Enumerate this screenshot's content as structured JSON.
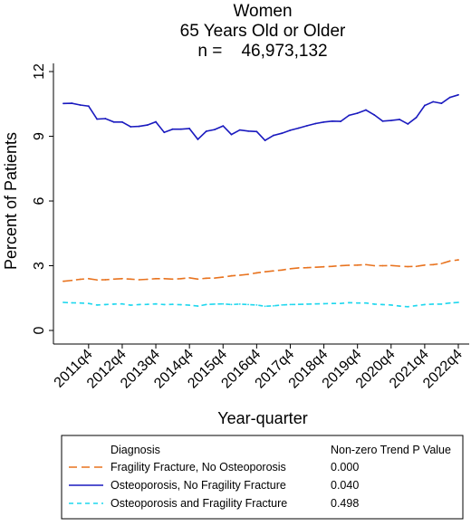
{
  "chart_data": {
    "type": "line",
    "title_lines": [
      "Women",
      "65 Years Old or Older",
      "n =    46,973,132"
    ],
    "xlabel": "Year-quarter",
    "ylabel": "Percent of Patients",
    "ylim": [
      0,
      12
    ],
    "yticks": [
      0,
      3,
      6,
      9,
      12
    ],
    "x_tick_labels": [
      "2011q4",
      "2012q4",
      "2013q4",
      "2014q4",
      "2015q4",
      "2016q4",
      "2017q4",
      "2018q4",
      "2019q4",
      "2020q4",
      "2021q4",
      "2022q4"
    ],
    "x_tick_index_start": 3,
    "x": [
      "2011q1",
      "2011q2",
      "2011q3",
      "2011q4",
      "2012q1",
      "2012q2",
      "2012q3",
      "2012q4",
      "2013q1",
      "2013q2",
      "2013q3",
      "2013q4",
      "2014q1",
      "2014q2",
      "2014q3",
      "2014q4",
      "2015q1",
      "2015q2",
      "2015q3",
      "2015q4",
      "2016q1",
      "2016q2",
      "2016q3",
      "2016q4",
      "2017q1",
      "2017q2",
      "2017q3",
      "2017q4",
      "2018q1",
      "2018q2",
      "2018q3",
      "2018q4",
      "2019q1",
      "2019q2",
      "2019q3",
      "2019q4",
      "2020q1",
      "2020q2",
      "2020q3",
      "2020q4",
      "2021q1",
      "2021q2",
      "2021q3",
      "2021q4",
      "2022q1",
      "2022q2",
      "2022q3",
      "2022q4"
    ],
    "series": [
      {
        "name": "Fragility Fracture, No Osteoporosis",
        "color": "#e8731f",
        "dash": "long-dash",
        "p_value": "0.000",
        "values": [
          2.28,
          2.32,
          2.37,
          2.4,
          2.34,
          2.35,
          2.38,
          2.4,
          2.38,
          2.35,
          2.37,
          2.4,
          2.4,
          2.38,
          2.4,
          2.44,
          2.38,
          2.42,
          2.43,
          2.47,
          2.53,
          2.56,
          2.6,
          2.67,
          2.72,
          2.76,
          2.8,
          2.86,
          2.9,
          2.91,
          2.93,
          2.95,
          2.97,
          3.0,
          3.02,
          3.03,
          3.05,
          3.0,
          3.0,
          3.01,
          2.98,
          2.96,
          2.97,
          3.03,
          3.05,
          3.1,
          3.22,
          3.27
        ]
      },
      {
        "name": "Osteoporosis, No Fragility Fracture",
        "color": "#1a1abf",
        "dash": "solid",
        "p_value": "0.040",
        "values": [
          10.52,
          10.53,
          10.45,
          10.4,
          9.8,
          9.82,
          9.66,
          9.66,
          9.44,
          9.46,
          9.52,
          9.67,
          9.18,
          9.33,
          9.33,
          9.36,
          8.86,
          9.23,
          9.31,
          9.48,
          9.08,
          9.29,
          9.24,
          9.22,
          8.81,
          9.04,
          9.14,
          9.28,
          9.38,
          9.49,
          9.59,
          9.66,
          9.7,
          9.69,
          9.97,
          10.07,
          10.22,
          9.99,
          9.7,
          9.73,
          9.78,
          9.57,
          9.87,
          10.43,
          10.6,
          10.53,
          10.8,
          10.92
        ]
      },
      {
        "name": "Osteoporosis and Fragility Fracture",
        "color": "#1fd7ee",
        "dash": "dash",
        "p_value": "0.498",
        "values": [
          1.3,
          1.28,
          1.27,
          1.25,
          1.18,
          1.2,
          1.22,
          1.23,
          1.17,
          1.2,
          1.21,
          1.23,
          1.2,
          1.21,
          1.19,
          1.17,
          1.13,
          1.2,
          1.22,
          1.23,
          1.2,
          1.22,
          1.2,
          1.18,
          1.12,
          1.14,
          1.18,
          1.2,
          1.21,
          1.22,
          1.23,
          1.24,
          1.25,
          1.25,
          1.29,
          1.27,
          1.27,
          1.22,
          1.2,
          1.18,
          1.13,
          1.1,
          1.15,
          1.2,
          1.22,
          1.22,
          1.27,
          1.3
        ]
      }
    ],
    "legend": {
      "placement": "bottom",
      "header_left": "Diagnosis",
      "header_right": "Non-zero Trend P Value"
    }
  }
}
